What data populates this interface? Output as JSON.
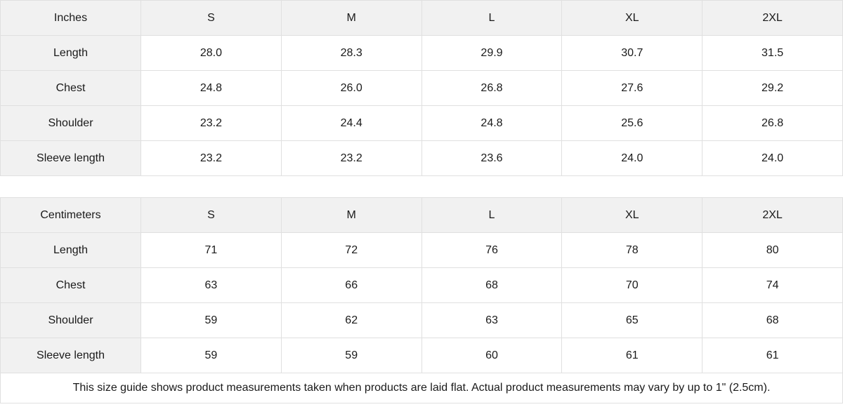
{
  "tables": [
    {
      "unit_label": "Inches",
      "sizes": [
        "S",
        "M",
        "L",
        "XL",
        "2XL"
      ],
      "rows": [
        {
          "label": "Length",
          "values": [
            "28.0",
            "28.3",
            "29.9",
            "30.7",
            "31.5"
          ]
        },
        {
          "label": "Chest",
          "values": [
            "24.8",
            "26.0",
            "26.8",
            "27.6",
            "29.2"
          ]
        },
        {
          "label": "Shoulder",
          "values": [
            "23.2",
            "24.4",
            "24.8",
            "25.6",
            "26.8"
          ]
        },
        {
          "label": "Sleeve length",
          "values": [
            "23.2",
            "23.2",
            "23.6",
            "24.0",
            "24.0"
          ]
        }
      ]
    },
    {
      "unit_label": "Centimeters",
      "sizes": [
        "S",
        "M",
        "L",
        "XL",
        "2XL"
      ],
      "rows": [
        {
          "label": "Length",
          "values": [
            "71",
            "72",
            "76",
            "78",
            "80"
          ]
        },
        {
          "label": "Chest",
          "values": [
            "63",
            "66",
            "68",
            "70",
            "74"
          ]
        },
        {
          "label": "Shoulder",
          "values": [
            "59",
            "62",
            "63",
            "65",
            "68"
          ]
        },
        {
          "label": "Sleeve length",
          "values": [
            "59",
            "59",
            "60",
            "61",
            "61"
          ]
        }
      ]
    }
  ],
  "footnote": "This size guide shows product measurements taken when products are laid flat.  Actual product measurements may vary by up to 1\" (2.5cm).",
  "colors": {
    "header_bg": "#f1f1f1",
    "border": "#e0e0e0",
    "text": "#1a1a1a"
  }
}
